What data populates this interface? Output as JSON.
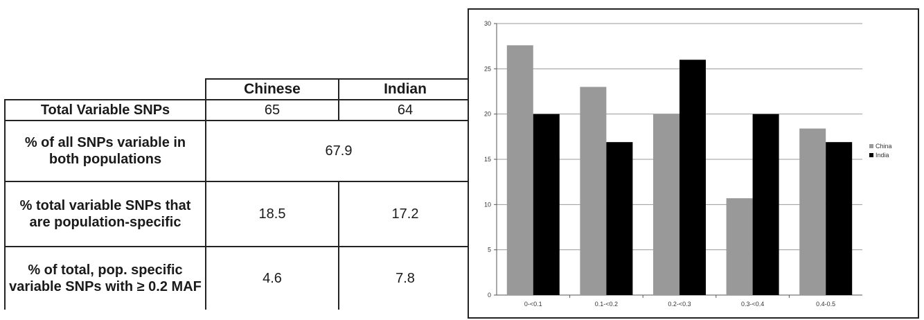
{
  "table": {
    "headers": [
      "",
      "Chinese",
      "Indian"
    ],
    "rows": [
      {
        "label": "Total Variable SNPs",
        "values": [
          "65",
          "64"
        ]
      },
      {
        "label": "% of all SNPs variable in both populations",
        "merged": "67.9"
      },
      {
        "label": "% total variable SNPs that are population-specific",
        "values": [
          "18.5",
          "17.2"
        ]
      },
      {
        "label": "% of total, pop. specific variable SNPs with ≥ 0.2 MAF",
        "values": [
          "4.6",
          "7.8"
        ]
      }
    ]
  },
  "chart_data": {
    "type": "bar",
    "categories": [
      "0-<0.1",
      "0.1-<0.2",
      "0.2-<0.3",
      "0.3-<0.4",
      "0.4-0.5"
    ],
    "series": [
      {
        "name": "China",
        "color": "#999999",
        "values": [
          27.6,
          23.0,
          20.0,
          10.7,
          18.4
        ]
      },
      {
        "name": "India",
        "color": "#000000",
        "values": [
          20.0,
          16.9,
          26.0,
          20.0,
          16.9
        ]
      }
    ],
    "ylim": [
      0,
      30
    ],
    "yticks": [
      0,
      5,
      10,
      15,
      20,
      25,
      30
    ],
    "grid": true,
    "legend_position": "right"
  }
}
